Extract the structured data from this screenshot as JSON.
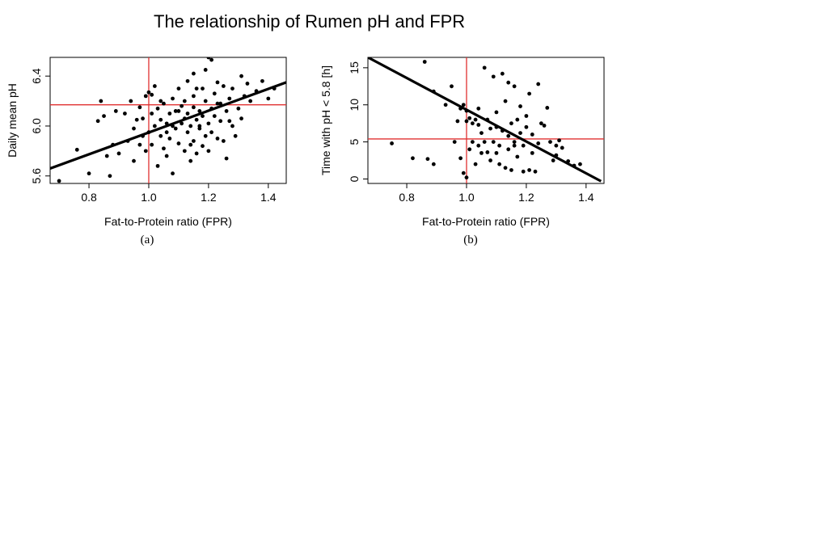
{
  "title": "The relationship of Rumen pH and FPR",
  "chart_data": [
    {
      "type": "scatter",
      "caption": "(a)",
      "xlabel": "Fat-to-Protein ratio (FPR)",
      "ylabel": "Daily mean pH",
      "xlim": [
        0.67,
        1.46
      ],
      "ylim": [
        5.54,
        6.55
      ],
      "xticks": [
        "0.8",
        "1.0",
        "1.2",
        "1.4"
      ],
      "yticks": [
        "5.6",
        "6.0",
        "6.4"
      ],
      "ref_lines": {
        "vertical_x": 1.0,
        "horizontal_y": 6.17
      },
      "ref_line_color": "#e03030",
      "fit_line": {
        "x": [
          0.67,
          1.46
        ],
        "y": [
          5.66,
          6.35
        ]
      },
      "points": [
        [
          0.7,
          5.56
        ],
        [
          0.76,
          5.81
        ],
        [
          0.8,
          5.62
        ],
        [
          0.83,
          6.04
        ],
        [
          0.84,
          6.2
        ],
        [
          0.85,
          6.08
        ],
        [
          0.86,
          5.76
        ],
        [
          0.87,
          5.6
        ],
        [
          0.88,
          5.85
        ],
        [
          0.89,
          6.12
        ],
        [
          0.9,
          5.78
        ],
        [
          0.92,
          6.1
        ],
        [
          0.93,
          5.88
        ],
        [
          0.94,
          6.2
        ],
        [
          0.95,
          5.72
        ],
        [
          0.95,
          5.98
        ],
        [
          0.96,
          6.05
        ],
        [
          0.97,
          6.15
        ],
        [
          0.98,
          5.92
        ],
        [
          0.98,
          6.06
        ],
        [
          0.99,
          6.24
        ],
        [
          0.99,
          5.8
        ],
        [
          1.0,
          6.27
        ],
        [
          1.0,
          5.95
        ],
        [
          1.01,
          6.1
        ],
        [
          1.01,
          5.85
        ],
        [
          1.02,
          6.32
        ],
        [
          1.02,
          6.0
        ],
        [
          1.03,
          6.14
        ],
        [
          1.03,
          5.68
        ],
        [
          1.04,
          6.05
        ],
        [
          1.04,
          5.92
        ],
        [
          1.05,
          6.18
        ],
        [
          1.05,
          5.82
        ],
        [
          1.06,
          6.02
        ],
        [
          1.06,
          5.76
        ],
        [
          1.07,
          6.1
        ],
        [
          1.07,
          5.9
        ],
        [
          1.08,
          6.22
        ],
        [
          1.08,
          5.62
        ],
        [
          1.09,
          5.98
        ],
        [
          1.09,
          6.12
        ],
        [
          1.1,
          6.3
        ],
        [
          1.1,
          5.86
        ],
        [
          1.11,
          6.02
        ],
        [
          1.11,
          6.16
        ],
        [
          1.12,
          5.8
        ],
        [
          1.12,
          6.06
        ],
        [
          1.13,
          5.95
        ],
        [
          1.13,
          6.36
        ],
        [
          1.13,
          6.1
        ],
        [
          1.14,
          5.72
        ],
        [
          1.14,
          6.0
        ],
        [
          1.15,
          6.24
        ],
        [
          1.15,
          5.88
        ],
        [
          1.15,
          6.42
        ],
        [
          1.16,
          6.05
        ],
        [
          1.16,
          5.78
        ],
        [
          1.17,
          6.12
        ],
        [
          1.17,
          5.98
        ],
        [
          1.18,
          6.3
        ],
        [
          1.18,
          5.84
        ],
        [
          1.18,
          6.08
        ],
        [
          1.19,
          5.92
        ],
        [
          1.19,
          6.2
        ],
        [
          1.2,
          6.55
        ],
        [
          1.2,
          6.02
        ],
        [
          1.2,
          5.8
        ],
        [
          1.21,
          6.14
        ],
        [
          1.21,
          6.53
        ],
        [
          1.21,
          5.95
        ],
        [
          1.22,
          6.26
        ],
        [
          1.22,
          6.08
        ],
        [
          1.23,
          5.9
        ],
        [
          1.23,
          6.18
        ],
        [
          1.24,
          6.04
        ],
        [
          1.25,
          6.32
        ],
        [
          1.25,
          5.88
        ],
        [
          1.26,
          6.12
        ],
        [
          1.26,
          5.74
        ],
        [
          1.27,
          6.22
        ],
        [
          1.28,
          6.0
        ],
        [
          1.28,
          6.3
        ],
        [
          1.29,
          5.92
        ],
        [
          1.3,
          6.14
        ],
        [
          1.31,
          6.4
        ],
        [
          1.31,
          6.06
        ],
        [
          1.32,
          6.24
        ],
        [
          1.33,
          6.34
        ],
        [
          1.34,
          6.2
        ],
        [
          1.36,
          6.28
        ],
        [
          1.38,
          6.36
        ],
        [
          1.4,
          6.22
        ],
        [
          1.42,
          6.3
        ],
        [
          1.15,
          6.15
        ],
        [
          1.12,
          6.2
        ],
        [
          1.08,
          6.0
        ],
        [
          1.04,
          6.2
        ],
        [
          1.17,
          6.0
        ],
        [
          1.23,
          6.35
        ],
        [
          1.19,
          6.45
        ],
        [
          1.1,
          6.12
        ],
        [
          1.06,
          5.95
        ],
        [
          0.97,
          5.85
        ],
        [
          1.01,
          6.25
        ],
        [
          1.14,
          5.85
        ],
        [
          1.24,
          6.18
        ],
        [
          1.27,
          6.04
        ],
        [
          1.16,
          6.3
        ]
      ]
    },
    {
      "type": "scatter",
      "caption": "(b)",
      "xlabel": "Fat-to-Protein ratio (FPR)",
      "ylabel": "Time with pH < 5.8 [h]",
      "xlim": [
        0.67,
        1.46
      ],
      "ylim": [
        -0.6,
        16.4
      ],
      "xticks": [
        "0.8",
        "1.0",
        "1.2",
        "1.4"
      ],
      "yticks": [
        "0",
        "5",
        "10",
        "15"
      ],
      "ref_lines": {
        "vertical_x": 1.0,
        "horizontal_y": 5.4
      },
      "ref_line_color": "#e03030",
      "fit_line": {
        "x": [
          0.67,
          1.45
        ],
        "y": [
          16.4,
          -0.3
        ]
      },
      "points": [
        [
          0.75,
          4.8
        ],
        [
          0.82,
          2.8
        ],
        [
          0.86,
          15.8
        ],
        [
          0.87,
          2.7
        ],
        [
          0.89,
          2.0
        ],
        [
          0.89,
          11.8
        ],
        [
          0.93,
          10.0
        ],
        [
          0.95,
          12.5
        ],
        [
          0.96,
          5.0
        ],
        [
          0.97,
          7.8
        ],
        [
          0.98,
          9.5
        ],
        [
          0.98,
          2.8
        ],
        [
          0.99,
          10.0
        ],
        [
          0.99,
          0.8
        ],
        [
          1.0,
          7.8
        ],
        [
          1.0,
          9.2
        ],
        [
          1.0,
          0.2
        ],
        [
          1.01,
          8.2
        ],
        [
          1.01,
          4.0
        ],
        [
          1.02,
          7.5
        ],
        [
          1.02,
          5.0
        ],
        [
          1.03,
          2.0
        ],
        [
          1.03,
          8.0
        ],
        [
          1.04,
          7.3
        ],
        [
          1.04,
          4.5
        ],
        [
          1.05,
          6.2
        ],
        [
          1.05,
          3.5
        ],
        [
          1.06,
          5.0
        ],
        [
          1.06,
          15.0
        ],
        [
          1.07,
          3.6
        ],
        [
          1.07,
          8.0
        ],
        [
          1.08,
          2.5
        ],
        [
          1.08,
          6.8
        ],
        [
          1.09,
          13.8
        ],
        [
          1.09,
          5.0
        ],
        [
          1.1,
          3.5
        ],
        [
          1.1,
          9.0
        ],
        [
          1.11,
          4.5
        ],
        [
          1.11,
          2.0
        ],
        [
          1.12,
          14.2
        ],
        [
          1.12,
          6.5
        ],
        [
          1.13,
          1.5
        ],
        [
          1.13,
          10.5
        ],
        [
          1.14,
          13.0
        ],
        [
          1.14,
          4.0
        ],
        [
          1.15,
          7.5
        ],
        [
          1.15,
          1.2
        ],
        [
          1.16,
          12.5
        ],
        [
          1.16,
          5.0
        ],
        [
          1.17,
          8.0
        ],
        [
          1.17,
          3.0
        ],
        [
          1.18,
          6.2
        ],
        [
          1.18,
          9.8
        ],
        [
          1.19,
          4.5
        ],
        [
          1.19,
          1.0
        ],
        [
          1.2,
          7.0
        ],
        [
          1.2,
          8.5
        ],
        [
          1.21,
          11.5
        ],
        [
          1.21,
          1.2
        ],
        [
          1.22,
          6.0
        ],
        [
          1.22,
          3.5
        ],
        [
          1.23,
          1.0
        ],
        [
          1.24,
          12.8
        ],
        [
          1.24,
          4.8
        ],
        [
          1.25,
          7.5
        ],
        [
          1.26,
          7.2
        ],
        [
          1.27,
          9.6
        ],
        [
          1.28,
          5.0
        ],
        [
          1.29,
          2.5
        ],
        [
          1.3,
          4.5
        ],
        [
          1.3,
          3.2
        ],
        [
          1.31,
          5.2
        ],
        [
          1.32,
          4.2
        ],
        [
          1.34,
          2.4
        ],
        [
          1.36,
          1.8
        ],
        [
          1.38,
          2.0
        ],
        [
          1.14,
          5.8
        ],
        [
          1.1,
          7.0
        ],
        [
          1.04,
          9.5
        ],
        [
          1.16,
          4.5
        ]
      ]
    }
  ]
}
